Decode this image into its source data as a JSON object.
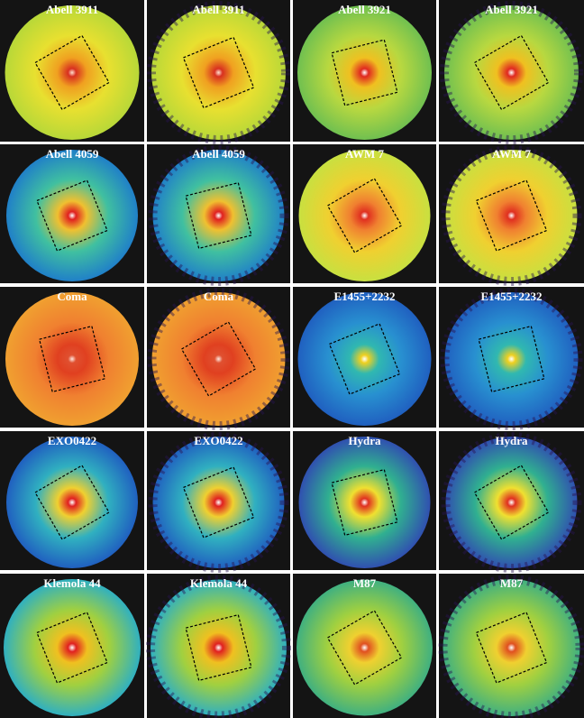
{
  "panels": [
    {
      "label": "Abell 3911"
    },
    {
      "label": "Abell 3911"
    },
    {
      "label": "Abell 3921"
    },
    {
      "label": "Abell 3921"
    },
    {
      "label": "Abell 4059"
    },
    {
      "label": "Abell 4059"
    },
    {
      "label": "AWM 7"
    },
    {
      "label": "AWM 7"
    },
    {
      "label": "Coma"
    },
    {
      "label": "Coma"
    },
    {
      "label": "E1455+2232"
    },
    {
      "label": "E1455+2232"
    },
    {
      "label": "EXO0422"
    },
    {
      "label": "EXO0422"
    },
    {
      "label": "Hydra"
    },
    {
      "label": "Hydra"
    },
    {
      "label": "Klemola 44"
    },
    {
      "label": "Klemola 44"
    },
    {
      "label": "M87"
    },
    {
      "label": "M87"
    }
  ]
}
